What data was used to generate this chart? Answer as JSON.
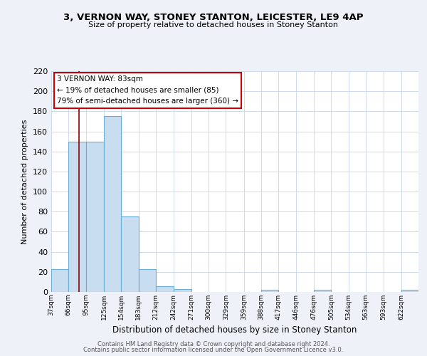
{
  "title": "3, VERNON WAY, STONEY STANTON, LEICESTER, LE9 4AP",
  "subtitle": "Size of property relative to detached houses in Stoney Stanton",
  "xlabel": "Distribution of detached houses by size in Stoney Stanton",
  "ylabel": "Number of detached properties",
  "bin_labels": [
    "37sqm",
    "66sqm",
    "95sqm",
    "125sqm",
    "154sqm",
    "183sqm",
    "212sqm",
    "242sqm",
    "271sqm",
    "300sqm",
    "329sqm",
    "359sqm",
    "388sqm",
    "417sqm",
    "446sqm",
    "476sqm",
    "505sqm",
    "534sqm",
    "563sqm",
    "593sqm",
    "622sqm"
  ],
  "bar_heights": [
    23,
    150,
    150,
    175,
    75,
    23,
    6,
    3,
    0,
    0,
    0,
    0,
    2,
    0,
    0,
    2,
    0,
    0,
    0,
    0,
    2
  ],
  "bar_color": "#c9ddf0",
  "bar_edge_color": "#6aaed6",
  "ylim": [
    0,
    220
  ],
  "yticks": [
    0,
    20,
    40,
    60,
    80,
    100,
    120,
    140,
    160,
    180,
    200,
    220
  ],
  "bin_edges": [
    37,
    66,
    95,
    125,
    154,
    183,
    212,
    242,
    271,
    300,
    329,
    359,
    388,
    417,
    446,
    476,
    505,
    534,
    563,
    593,
    622,
    651
  ],
  "red_line_x": 83,
  "annotation_title": "3 VERNON WAY: 83sqm",
  "annotation_line1": "← 19% of detached houses are smaller (85)",
  "annotation_line2": "79% of semi-detached houses are larger (360) →",
  "footer1": "Contains HM Land Registry data © Crown copyright and database right 2024.",
  "footer2": "Contains public sector information licensed under the Open Government Licence v3.0.",
  "background_color": "#eef2f8",
  "plot_bg_color": "#ffffff",
  "grid_color": "#c8d4e8"
}
